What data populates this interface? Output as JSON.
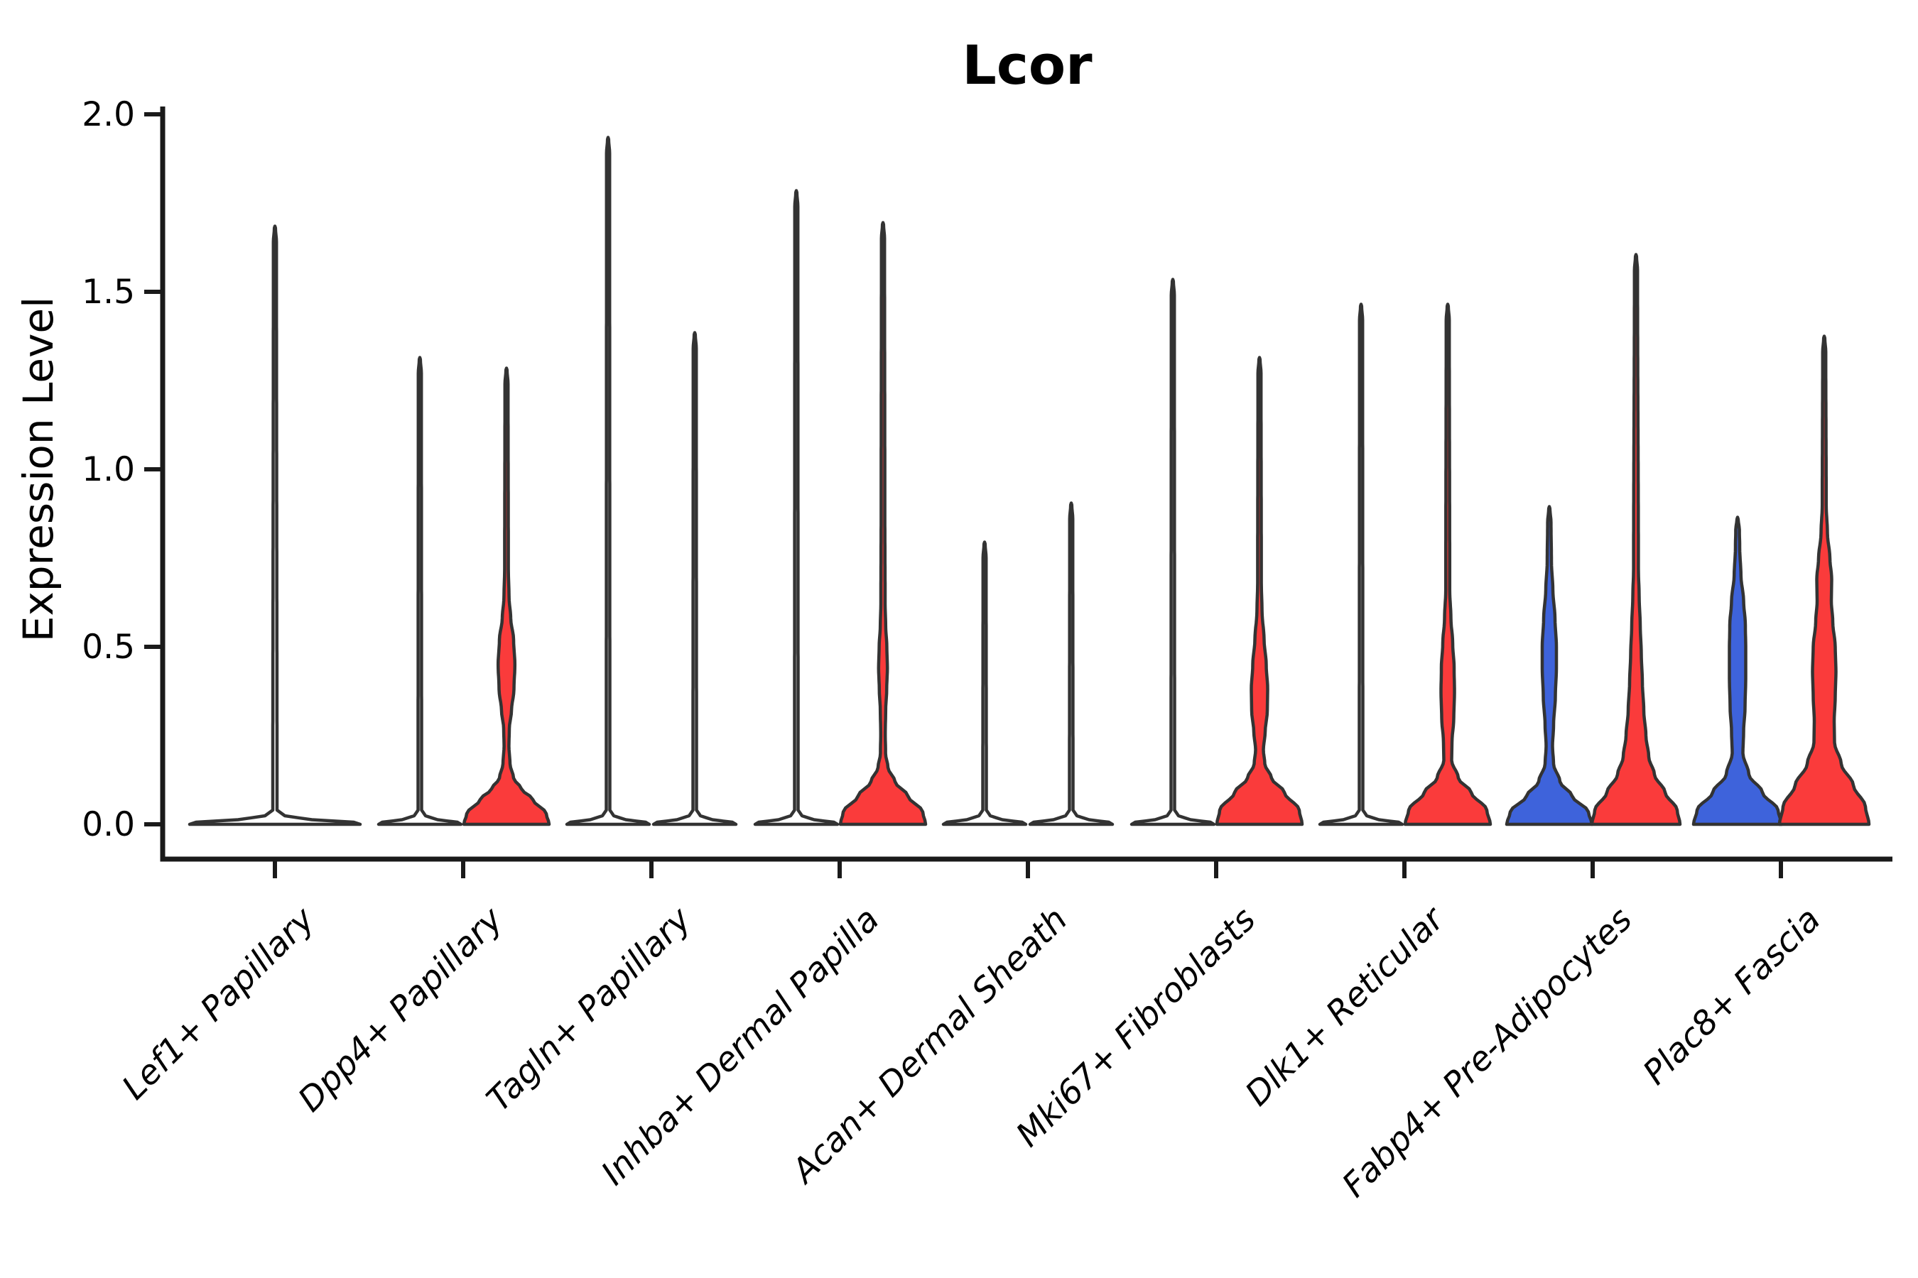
{
  "title": "Lcor",
  "axes": {
    "y_label": "Expression Level",
    "y_tick_labels": [
      "0.0",
      "0.5",
      "1.0",
      "1.5",
      "2.0"
    ],
    "y_tick_values": [
      0,
      0.5,
      1.0,
      1.5,
      2.0
    ],
    "ylim": [
      0,
      2.0
    ]
  },
  "colors": {
    "red_fill": "#FA3B3B",
    "blue_fill": "#3E63DB",
    "plain_fill": "#FFFFFF",
    "violin_outline": "#333333",
    "axis": "#1A1A1A",
    "background": "#FFFFFF"
  },
  "chart_data": {
    "type": "violin",
    "title": "Lcor",
    "xlabel": "",
    "ylabel": "Expression Level",
    "ylim": [
      0,
      2.0
    ],
    "grid": false,
    "legend": "none",
    "categories": [
      "Lef1+ Papillary",
      "Dpp4+ Papillary",
      "Tagln+ Papillary",
      "Inhba+ Dermal Papilla",
      "Acan+ Dermal Sheath",
      "Mki67+ Fibroblasts",
      "Dlk1+ Reticular",
      "Fabp4+ Pre-Adipocytes",
      "Plac8+ Fascia"
    ],
    "note": "Each violin is described by a width profile: pairs of [expression_value, half_width_px]. Most mass sits at 0 (flat pancake); thin spike reaches the max expression value.",
    "violins": [
      {
        "category": "Lef1+ Papillary",
        "groups": [
          {
            "group": "single",
            "color": "plain",
            "offset": 0,
            "max": 1.68,
            "profile": [
              [
                0,
                120
              ],
              [
                0.006,
                111
              ],
              [
                0.013,
                52
              ],
              [
                0.024,
                14
              ],
              [
                0.04,
                3
              ],
              [
                1.64,
                2.2
              ],
              [
                1.68,
                0.8
              ]
            ]
          }
        ]
      },
      {
        "category": "Dpp4+ Papillary",
        "groups": [
          {
            "group": "left",
            "color": "plain",
            "offset": -61,
            "max": 1.31,
            "profile": [
              [
                0,
                58
              ],
              [
                0.006,
                53
              ],
              [
                0.013,
                25
              ],
              [
                0.024,
                8
              ],
              [
                0.04,
                2.5
              ],
              [
                1.27,
                2.2
              ],
              [
                1.31,
                0.8
              ]
            ]
          },
          {
            "group": "right",
            "color": "red",
            "offset": 61,
            "max": 1.28,
            "profile": [
              [
                0,
                60
              ],
              [
                0.03,
                56
              ],
              [
                0.07,
                37
              ],
              [
                0.1,
                21
              ],
              [
                0.13,
                10
              ],
              [
                0.17,
                5
              ],
              [
                0.22,
                3.4
              ],
              [
                0.27,
                4
              ],
              [
                0.32,
                7
              ],
              [
                0.38,
                10.5
              ],
              [
                0.45,
                11.8
              ],
              [
                0.52,
                10
              ],
              [
                0.58,
                6
              ],
              [
                0.64,
                3.6
              ],
              [
                0.72,
                2.6
              ],
              [
                1.24,
                2.2
              ],
              [
                1.28,
                0.8
              ]
            ]
          }
        ]
      },
      {
        "category": "Tagln+ Papillary",
        "groups": [
          {
            "group": "left",
            "color": "plain",
            "offset": -61,
            "max": 1.93,
            "profile": [
              [
                0,
                58
              ],
              [
                0.006,
                53
              ],
              [
                0.013,
                25
              ],
              [
                0.024,
                8
              ],
              [
                0.04,
                2.5
              ],
              [
                1.89,
                2.2
              ],
              [
                1.93,
                0.8
              ]
            ]
          },
          {
            "group": "right",
            "color": "plain",
            "offset": 61,
            "max": 1.38,
            "profile": [
              [
                0,
                58
              ],
              [
                0.006,
                53
              ],
              [
                0.013,
                25
              ],
              [
                0.024,
                8
              ],
              [
                0.04,
                2.5
              ],
              [
                1.34,
                2.2
              ],
              [
                1.38,
                0.8
              ]
            ]
          }
        ]
      },
      {
        "category": "Inhba+ Dermal Papilla",
        "groups": [
          {
            "group": "left",
            "color": "plain",
            "offset": -61,
            "max": 1.78,
            "profile": [
              [
                0,
                58
              ],
              [
                0.006,
                53
              ],
              [
                0.013,
                25
              ],
              [
                0.024,
                8
              ],
              [
                0.04,
                2.5
              ],
              [
                1.74,
                2.2
              ],
              [
                1.78,
                0.8
              ]
            ]
          },
          {
            "group": "right",
            "color": "red",
            "offset": 61,
            "max": 1.69,
            "profile": [
              [
                0,
                60
              ],
              [
                0.035,
                56
              ],
              [
                0.08,
                35
              ],
              [
                0.12,
                17
              ],
              [
                0.16,
                7
              ],
              [
                0.2,
                3.6
              ],
              [
                0.26,
                3.2
              ],
              [
                0.32,
                3.8
              ],
              [
                0.38,
                5.2
              ],
              [
                0.44,
                6.2
              ],
              [
                0.5,
                5.4
              ],
              [
                0.56,
                3.8
              ],
              [
                0.62,
                3
              ],
              [
                0.9,
                2.6
              ],
              [
                1.65,
                2.2
              ],
              [
                1.69,
                0.8
              ]
            ]
          }
        ]
      },
      {
        "category": "Acan+ Dermal Sheath",
        "groups": [
          {
            "group": "left",
            "color": "plain",
            "offset": -61,
            "max": 0.79,
            "profile": [
              [
                0,
                58
              ],
              [
                0.006,
                53
              ],
              [
                0.013,
                25
              ],
              [
                0.024,
                8
              ],
              [
                0.04,
                2.5
              ],
              [
                0.75,
                2.2
              ],
              [
                0.79,
                0.8
              ]
            ]
          },
          {
            "group": "right",
            "color": "plain",
            "offset": 61,
            "max": 0.9,
            "profile": [
              [
                0,
                58
              ],
              [
                0.006,
                53
              ],
              [
                0.013,
                25
              ],
              [
                0.024,
                8
              ],
              [
                0.04,
                2.5
              ],
              [
                0.86,
                2.2
              ],
              [
                0.9,
                0.8
              ]
            ]
          }
        ]
      },
      {
        "category": "Mki67+ Fibroblasts",
        "groups": [
          {
            "group": "left",
            "color": "plain",
            "offset": -61,
            "max": 1.53,
            "profile": [
              [
                0,
                58
              ],
              [
                0.006,
                53
              ],
              [
                0.013,
                25
              ],
              [
                0.024,
                8
              ],
              [
                0.04,
                2.5
              ],
              [
                1.49,
                2.2
              ],
              [
                1.53,
                0.8
              ]
            ]
          },
          {
            "group": "right",
            "color": "red",
            "offset": 61,
            "max": 1.31,
            "profile": [
              [
                0,
                60
              ],
              [
                0.04,
                56
              ],
              [
                0.09,
                35
              ],
              [
                0.13,
                17
              ],
              [
                0.17,
                7.5
              ],
              [
                0.21,
                5.5
              ],
              [
                0.26,
                8
              ],
              [
                0.32,
                11
              ],
              [
                0.38,
                11.5
              ],
              [
                0.45,
                9.5
              ],
              [
                0.52,
                6.5
              ],
              [
                0.6,
                3.6
              ],
              [
                0.68,
                2.6
              ],
              [
                1.27,
                2.2
              ],
              [
                1.31,
                0.8
              ]
            ]
          }
        ]
      },
      {
        "category": "Dlk1+ Reticular",
        "groups": [
          {
            "group": "left",
            "color": "plain",
            "offset": -61,
            "max": 1.46,
            "profile": [
              [
                0,
                58
              ],
              [
                0.006,
                53
              ],
              [
                0.013,
                25
              ],
              [
                0.024,
                8
              ],
              [
                0.04,
                2.5
              ],
              [
                1.42,
                2.2
              ],
              [
                1.46,
                0.8
              ]
            ]
          },
          {
            "group": "right",
            "color": "red",
            "offset": 61,
            "max": 1.46,
            "profile": [
              [
                0,
                60
              ],
              [
                0.04,
                55
              ],
              [
                0.09,
                33
              ],
              [
                0.13,
                15
              ],
              [
                0.18,
                5.5
              ],
              [
                0.23,
                6
              ],
              [
                0.3,
                8.5
              ],
              [
                0.37,
                9.5
              ],
              [
                0.44,
                9
              ],
              [
                0.51,
                7
              ],
              [
                0.58,
                4.5
              ],
              [
                0.66,
                2.8
              ],
              [
                1.42,
                2.2
              ],
              [
                1.46,
                0.8
              ]
            ]
          }
        ]
      },
      {
        "category": "Fabp4+ Pre-Adipocytes",
        "groups": [
          {
            "group": "left",
            "color": "blue",
            "offset": -61,
            "max": 0.89,
            "profile": [
              [
                0,
                60
              ],
              [
                0.035,
                55
              ],
              [
                0.08,
                32
              ],
              [
                0.12,
                15
              ],
              [
                0.17,
                6
              ],
              [
                0.22,
                4.5
              ],
              [
                0.28,
                6
              ],
              [
                0.36,
                8.5
              ],
              [
                0.44,
                10
              ],
              [
                0.5,
                10
              ],
              [
                0.58,
                8
              ],
              [
                0.66,
                5
              ],
              [
                0.74,
                3
              ],
              [
                0.85,
                2.4
              ],
              [
                0.89,
                0.8
              ]
            ]
          },
          {
            "group": "right",
            "color": "red",
            "offset": 61,
            "max": 1.6,
            "profile": [
              [
                0,
                62
              ],
              [
                0.04,
                58
              ],
              [
                0.09,
                41
              ],
              [
                0.14,
                26
              ],
              [
                0.19,
                18
              ],
              [
                0.25,
                14
              ],
              [
                0.32,
                11
              ],
              [
                0.4,
                9
              ],
              [
                0.48,
                7.5
              ],
              [
                0.56,
                6
              ],
              [
                0.64,
                4.5
              ],
              [
                0.72,
                3.4
              ],
              [
                1.56,
                2.2
              ],
              [
                1.6,
                0.8
              ]
            ]
          }
        ]
      },
      {
        "category": "Plac8+ Fascia",
        "groups": [
          {
            "group": "left",
            "color": "blue",
            "offset": -61,
            "max": 0.86,
            "profile": [
              [
                0,
                62
              ],
              [
                0.04,
                57
              ],
              [
                0.09,
                35
              ],
              [
                0.14,
                16
              ],
              [
                0.2,
                7.5
              ],
              [
                0.26,
                8.5
              ],
              [
                0.33,
                10.5
              ],
              [
                0.41,
                11.5
              ],
              [
                0.49,
                11.5
              ],
              [
                0.56,
                11
              ],
              [
                0.63,
                8.5
              ],
              [
                0.7,
                4.8
              ],
              [
                0.78,
                3
              ],
              [
                0.83,
                2.6
              ],
              [
                0.86,
                0.8
              ]
            ]
          },
          {
            "group": "right",
            "color": "red",
            "offset": 61,
            "max": 1.37,
            "profile": [
              [
                0,
                63
              ],
              [
                0.05,
                58
              ],
              [
                0.11,
                41
              ],
              [
                0.17,
                24
              ],
              [
                0.23,
                14.5
              ],
              [
                0.29,
                14
              ],
              [
                0.36,
                15.5
              ],
              [
                0.43,
                16.5
              ],
              [
                0.5,
                15.5
              ],
              [
                0.57,
                12
              ],
              [
                0.63,
                10
              ],
              [
                0.69,
                10.5
              ],
              [
                0.75,
                8
              ],
              [
                0.82,
                4.5
              ],
              [
                0.9,
                2.8
              ],
              [
                1.33,
                2.2
              ],
              [
                1.37,
                0.8
              ]
            ]
          }
        ]
      }
    ]
  }
}
